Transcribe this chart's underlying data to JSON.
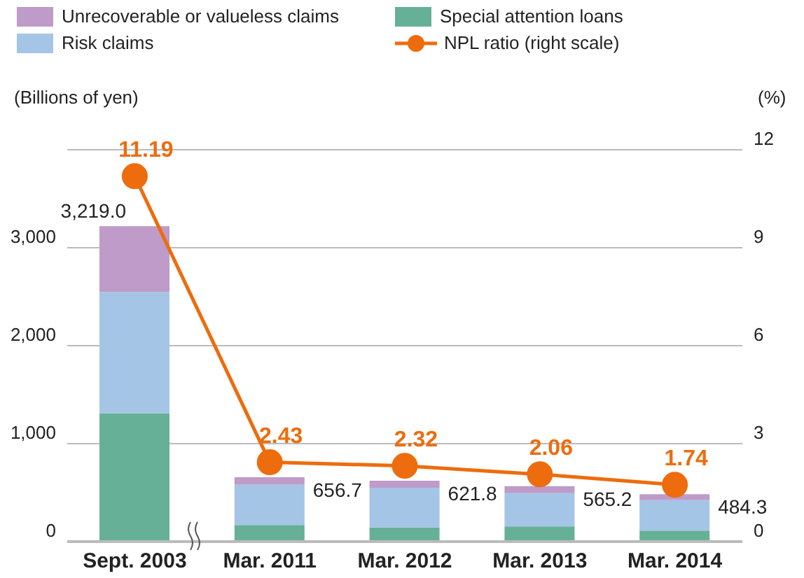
{
  "chart_data": {
    "type": "bar",
    "stacked": true,
    "categories": [
      "Sept. 2003",
      "Mar. 2011",
      "Mar. 2012",
      "Mar. 2013",
      "Mar. 2014"
    ],
    "series": [
      {
        "name": "Special attention loans",
        "color": "#66b097",
        "values": [
          1310,
          170,
          145,
          155,
          113
        ]
      },
      {
        "name": "Risk claims",
        "color": "#a4c5e6",
        "values": [
          1239,
          410,
          405,
          340,
          310
        ]
      },
      {
        "name": "Unrecoverable or valueless claims",
        "color": "#be9bc8",
        "values": [
          670,
          76.7,
          71.8,
          70.2,
          61.3
        ]
      },
      {
        "name": "NPL ratio (right scale)",
        "type": "line",
        "axis": "y2",
        "color": "#ed6c0d",
        "values": [
          11.19,
          2.43,
          2.32,
          2.06,
          1.74
        ],
        "data_labels": true,
        "marker": "circle"
      }
    ],
    "totals": [
      "3,219.0",
      "656.7",
      "621.8",
      "565.2",
      "484.3"
    ],
    "ylabel": "(Billions of yen)",
    "y2label": "(%)",
    "ylim": [
      0,
      4000
    ],
    "yticks": [
      0,
      {
        "value": 1000,
        "label": "1,000"
      },
      {
        "value": 2000,
        "label": "2,000"
      },
      {
        "value": 3000,
        "label": "3,000"
      },
      {
        "value": 4000,
        "label": null
      }
    ],
    "y2lim": [
      0,
      12
    ],
    "y2ticks": [
      0,
      3,
      6,
      9,
      12
    ],
    "grid": "y",
    "legend": "top"
  }
}
